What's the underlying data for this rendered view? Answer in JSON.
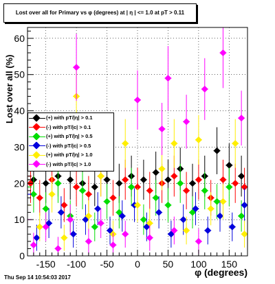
{
  "title": "Lost over all for Primary vs φ (degrees) at | η | <= 1.0 at pT > 0.11",
  "timestamp": "Thu Sep 14 10:54:03 2017",
  "chart_data": {
    "type": "scatter",
    "title": "Lost over all for Primary vs φ (degrees) at | η | <= 1.0 at pT > 0.11",
    "xlabel": "φ (degrees)",
    "ylabel": "Lost over all (%)",
    "xlim": [
      -180,
      180
    ],
    "ylim": [
      0,
      63
    ],
    "xticks": [
      -150,
      -100,
      -50,
      0,
      50,
      100,
      150
    ],
    "yticks": [
      0,
      10,
      20,
      30,
      40,
      50,
      60
    ],
    "grid": true,
    "legend_position": "left",
    "series": [
      {
        "name": "(+) with pT/|η| > 0.1",
        "color": "#000000",
        "lead": 21,
        "values": [
          [
            -170,
            21
          ],
          [
            -150,
            20
          ],
          [
            -130,
            22
          ],
          [
            -110,
            21
          ],
          [
            -90,
            20
          ],
          [
            -70,
            19
          ],
          [
            -50,
            21
          ],
          [
            -30,
            20
          ],
          [
            -10,
            22
          ],
          [
            10,
            21
          ],
          [
            30,
            23
          ],
          [
            50,
            21
          ],
          [
            70,
            24
          ],
          [
            90,
            20
          ],
          [
            110,
            22
          ],
          [
            130,
            29
          ],
          [
            150,
            25
          ],
          [
            170,
            22
          ]
        ]
      },
      {
        "name": "(-) with pT/|c| > 0.1",
        "color": "#ff0000",
        "lead": 22,
        "values": [
          [
            -175,
            20
          ],
          [
            -160,
            16
          ],
          [
            -140,
            21
          ],
          [
            -120,
            14
          ],
          [
            -100,
            19
          ],
          [
            -80,
            17
          ],
          [
            -60,
            22
          ],
          [
            -40,
            16
          ],
          [
            -20,
            21
          ],
          [
            0,
            19
          ],
          [
            20,
            18
          ],
          [
            40,
            20
          ],
          [
            60,
            22
          ],
          [
            80,
            18
          ],
          [
            100,
            21
          ],
          [
            120,
            16
          ],
          [
            140,
            21
          ],
          [
            160,
            20
          ],
          [
            175,
            19
          ]
        ]
      },
      {
        "name": "(+) with pT/|η| > 0.5",
        "color": "#00dd00",
        "lead": 19,
        "values": [
          [
            -170,
            17
          ],
          [
            -150,
            13
          ],
          [
            -130,
            20
          ],
          [
            -110,
            11
          ],
          [
            -90,
            18
          ],
          [
            -70,
            8
          ],
          [
            -50,
            15
          ],
          [
            -30,
            12
          ],
          [
            -10,
            19
          ],
          [
            10,
            10
          ],
          [
            30,
            16
          ],
          [
            50,
            14
          ],
          [
            70,
            20
          ],
          [
            90,
            12
          ],
          [
            110,
            18
          ],
          [
            130,
            15
          ],
          [
            150,
            19
          ],
          [
            170,
            11
          ]
        ]
      },
      {
        "name": "(-) with pT/|c| > 0.5",
        "color": "#0000dd",
        "lead": 17,
        "values": [
          [
            -165,
            5
          ],
          [
            -145,
            9
          ],
          [
            -125,
            12
          ],
          [
            -105,
            6
          ],
          [
            -85,
            10
          ],
          [
            -65,
            13
          ],
          [
            -45,
            7
          ],
          [
            -25,
            11
          ],
          [
            -5,
            14
          ],
          [
            15,
            8
          ],
          [
            35,
            12
          ],
          [
            55,
            6
          ],
          [
            75,
            10
          ],
          [
            95,
            13
          ],
          [
            115,
            7
          ],
          [
            135,
            11
          ],
          [
            155,
            8
          ],
          [
            175,
            14
          ]
        ]
      },
      {
        "name": "(+) with pT/|η| > 1.0",
        "color": "#ffee00",
        "lead": 14,
        "values": [
          [
            -160,
            8
          ],
          [
            -140,
            17
          ],
          [
            -120,
            5
          ],
          [
            -100,
            44
          ],
          [
            -80,
            11
          ],
          [
            -60,
            22
          ],
          [
            -40,
            6
          ],
          [
            -20,
            31
          ],
          [
            0,
            14
          ],
          [
            20,
            9
          ],
          [
            40,
            24
          ],
          [
            60,
            31
          ],
          [
            80,
            7
          ],
          [
            100,
            32
          ],
          [
            120,
            13
          ],
          [
            140,
            15
          ],
          [
            160,
            31
          ],
          [
            175,
            6
          ]
        ]
      },
      {
        "name": "(-) with pT/|c| > 1.0",
        "color": "#ff00ff",
        "lead": 10,
        "values": [
          [
            -170,
            3
          ],
          [
            -150,
            8
          ],
          [
            -130,
            2
          ],
          [
            -110,
            10
          ],
          [
            -100,
            52
          ],
          [
            -80,
            4
          ],
          [
            -60,
            9
          ],
          [
            -40,
            3
          ],
          [
            -20,
            6
          ],
          [
            0,
            43
          ],
          [
            20,
            5
          ],
          [
            40,
            35
          ],
          [
            50,
            49
          ],
          [
            60,
            7
          ],
          [
            80,
            37
          ],
          [
            100,
            4
          ],
          [
            110,
            46
          ],
          [
            140,
            56
          ],
          [
            170,
            38
          ]
        ]
      }
    ]
  }
}
